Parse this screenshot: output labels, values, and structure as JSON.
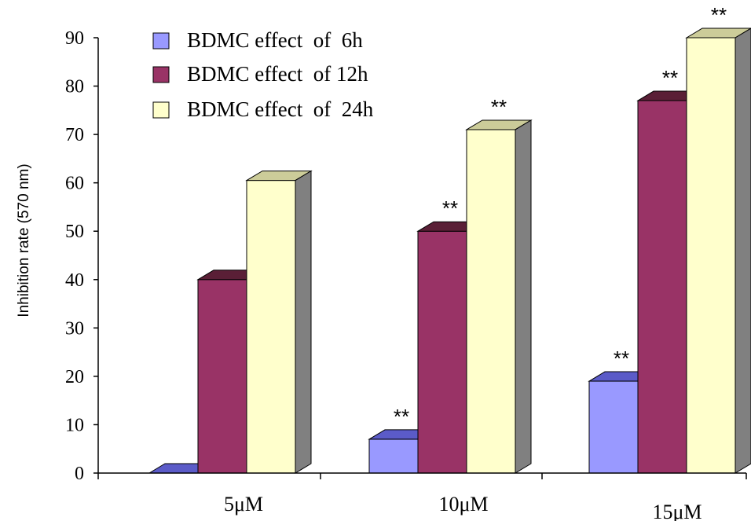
{
  "chart_data": {
    "type": "bar",
    "categories": [
      "5μM",
      "10μM",
      "15μM"
    ],
    "series": [
      {
        "name": "BDMC effect  of  6h",
        "values": [
          0,
          7,
          19
        ],
        "color": "#9999ff",
        "top_color": "#5b5bc8",
        "side_color": "#6b6bd0"
      },
      {
        "name": "BDMC effect  of 12h",
        "values": [
          40,
          50,
          77
        ],
        "color": "#993366",
        "top_color": "#5a1f36",
        "side_color": "#6e2444"
      },
      {
        "name": "BDMC effect  of  24h",
        "values": [
          60.5,
          71,
          90
        ],
        "color": "#ffffcc",
        "top_color": "#cccc99",
        "side_color": "#808080"
      }
    ],
    "annotations": [
      [
        null,
        "**",
        "**"
      ],
      [
        null,
        "**",
        "**"
      ],
      [
        null,
        "**",
        "**"
      ]
    ],
    "ylabel": "Inhibition rate (570 nm)",
    "ylim": [
      0,
      90
    ],
    "yticks": [
      0,
      10,
      20,
      30,
      40,
      50,
      60,
      70,
      80,
      90
    ],
    "grid": false,
    "legend_position": "top-left"
  }
}
